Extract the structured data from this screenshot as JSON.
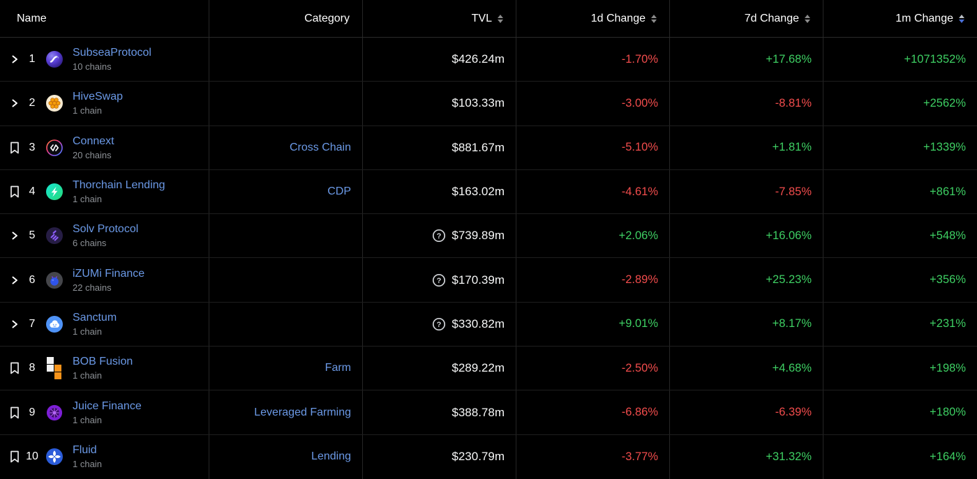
{
  "colors": {
    "background": "#000000",
    "row_divider": "#1e1e1e",
    "column_divider": "#262626",
    "link_blue": "#6b99e6",
    "muted_gray": "#8d9196",
    "positive_green": "#3ecf63",
    "negative_red": "#f14c4c",
    "value_white": "#f7f8f8",
    "sort_inactive_gray": "#8b8b8b",
    "sort_active_blue": "#4a6fd8"
  },
  "icons": {
    "row_expand": "chevron-right",
    "row_save": "bookmark-outline",
    "tvl_flag": "question-mark-circle",
    "sort": "up-down-triangles"
  },
  "table": {
    "sorted_by": "1m Change",
    "sort_direction": "desc",
    "columns": [
      {
        "label": "Name",
        "align": "left",
        "sortable": false,
        "sort": "none"
      },
      {
        "label": "Category",
        "align": "right",
        "sortable": false,
        "sort": "none"
      },
      {
        "label": "TVL",
        "align": "right",
        "sortable": true,
        "sort": "none"
      },
      {
        "label": "1d Change",
        "align": "right",
        "sortable": true,
        "sort": "none"
      },
      {
        "label": "7d Change",
        "align": "right",
        "sortable": true,
        "sort": "none"
      },
      {
        "label": "1m Change",
        "align": "right",
        "sortable": true,
        "sort": "desc"
      }
    ],
    "rows": [
      {
        "rank": "1",
        "row_icon": "chevron",
        "logo": "subsea-protocol-logo",
        "name": "SubseaProtocol",
        "chains": "10 chains",
        "category": "",
        "tvl": "$426.24m",
        "tvl_flagged": false,
        "change_1d": "-1.70%",
        "change_7d": "+17.68%",
        "change_1m": "+1071352%"
      },
      {
        "rank": "2",
        "row_icon": "chevron",
        "logo": "hiveswap-logo",
        "name": "HiveSwap",
        "chains": "1 chain",
        "category": "",
        "tvl": "$103.33m",
        "tvl_flagged": false,
        "change_1d": "-3.00%",
        "change_7d": "-8.81%",
        "change_1m": "+2562%"
      },
      {
        "rank": "3",
        "row_icon": "bookmark",
        "logo": "connext-logo",
        "name": "Connext",
        "chains": "20 chains",
        "category": "Cross Chain",
        "tvl": "$881.67m",
        "tvl_flagged": false,
        "change_1d": "-5.10%",
        "change_7d": "+1.81%",
        "change_1m": "+1339%"
      },
      {
        "rank": "4",
        "row_icon": "bookmark",
        "logo": "thorchain-lending-logo",
        "name": "Thorchain Lending",
        "chains": "1 chain",
        "category": "CDP",
        "tvl": "$163.02m",
        "tvl_flagged": false,
        "change_1d": "-4.61%",
        "change_7d": "-7.85%",
        "change_1m": "+861%"
      },
      {
        "rank": "5",
        "row_icon": "chevron",
        "logo": "solv-protocol-logo",
        "name": "Solv Protocol",
        "chains": "6 chains",
        "category": "",
        "tvl": "$739.89m",
        "tvl_flagged": true,
        "change_1d": "+2.06%",
        "change_7d": "+16.06%",
        "change_1m": "+548%"
      },
      {
        "rank": "6",
        "row_icon": "chevron",
        "logo": "izumi-finance-logo",
        "name": "iZUMi Finance",
        "chains": "22 chains",
        "category": "",
        "tvl": "$170.39m",
        "tvl_flagged": true,
        "change_1d": "-2.89%",
        "change_7d": "+25.23%",
        "change_1m": "+356%"
      },
      {
        "rank": "7",
        "row_icon": "chevron",
        "logo": "sanctum-logo",
        "name": "Sanctum",
        "chains": "1 chain",
        "category": "",
        "tvl": "$330.82m",
        "tvl_flagged": true,
        "change_1d": "+9.01%",
        "change_7d": "+8.17%",
        "change_1m": "+231%"
      },
      {
        "rank": "8",
        "row_icon": "bookmark",
        "logo": "bob-fusion-logo",
        "name": "BOB Fusion",
        "chains": "1 chain",
        "category": "Farm",
        "tvl": "$289.22m",
        "tvl_flagged": false,
        "change_1d": "-2.50%",
        "change_7d": "+4.68%",
        "change_1m": "+198%"
      },
      {
        "rank": "9",
        "row_icon": "bookmark",
        "logo": "juice-finance-logo",
        "name": "Juice Finance",
        "chains": "1 chain",
        "category": "Leveraged Farming",
        "tvl": "$388.78m",
        "tvl_flagged": false,
        "change_1d": "-6.86%",
        "change_7d": "-6.39%",
        "change_1m": "+180%"
      },
      {
        "rank": "10",
        "row_icon": "bookmark",
        "logo": "fluid-logo",
        "name": "Fluid",
        "chains": "1 chain",
        "category": "Lending",
        "tvl": "$230.79m",
        "tvl_flagged": false,
        "change_1d": "-3.77%",
        "change_7d": "+31.32%",
        "change_1m": "+164%"
      }
    ]
  }
}
